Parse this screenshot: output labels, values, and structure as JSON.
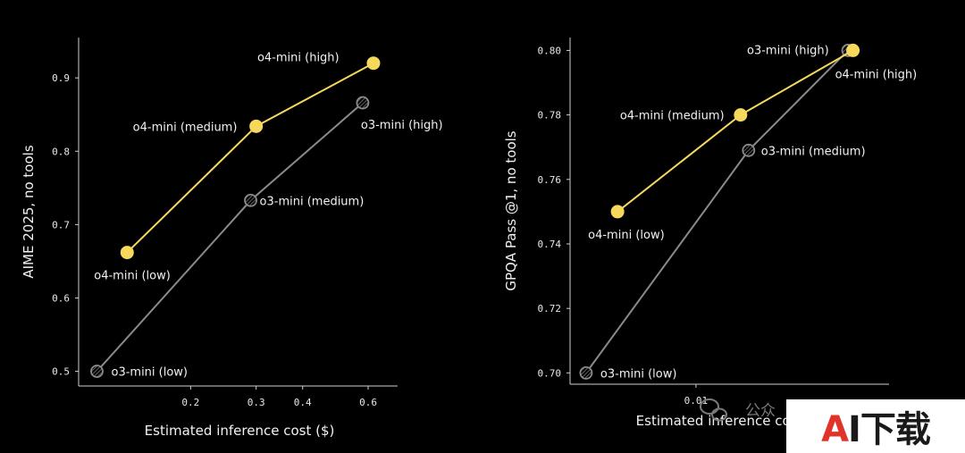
{
  "chart_data": [
    {
      "type": "line",
      "xscale": "log",
      "xlabel": "Estimated inference cost ($)",
      "ylabel": "AIME 2025, no tools",
      "xlim": [
        0.1,
        0.72
      ],
      "ylim": [
        0.48,
        0.955
      ],
      "xticks": [
        "0.2",
        "0.3",
        "0.4",
        "0.6"
      ],
      "yticks": [
        "0.5",
        "0.6",
        "0.7",
        "0.8",
        "0.9"
      ],
      "grid": false,
      "series": [
        {
          "name": "o4-mini",
          "color": "#f6d95c",
          "marker": "filled-circle",
          "x": [
            0.135,
            0.3,
            0.62
          ],
          "y": [
            0.662,
            0.834,
            0.92
          ],
          "point_labels": [
            "o4-mini (low)",
            "o4-mini (medium)",
            "o4-mini (high)"
          ]
        },
        {
          "name": "o3-mini",
          "color": "#8a8a8a",
          "marker": "hatched-circle",
          "x": [
            0.112,
            0.29,
            0.58
          ],
          "y": [
            0.5,
            0.733,
            0.866
          ],
          "point_labels": [
            "o3-mini (low)",
            "o3-mini (medium)",
            "o3-mini (high)"
          ]
        }
      ]
    },
    {
      "type": "line",
      "xscale": "log",
      "xlabel": "Estimated inference cost ($)",
      "ylabel": "GPQA Pass @1, no tools",
      "xlim": [
        0.0035,
        0.05
      ],
      "ylim": [
        0.6965,
        0.804
      ],
      "xticks": [
        "0.01"
      ],
      "yticks": [
        "0.70",
        "0.72",
        "0.74",
        "0.76",
        "0.78",
        "0.80"
      ],
      "grid": false,
      "series": [
        {
          "name": "o4-mini",
          "color": "#f6d95c",
          "marker": "filled-circle",
          "x": [
            0.0052,
            0.0145,
            0.037
          ],
          "y": [
            0.75,
            0.78,
            0.8
          ],
          "point_labels": [
            "o4-mini (low)",
            "o4-mini (medium)",
            "o4-mini (high)"
          ]
        },
        {
          "name": "o3-mini",
          "color": "#8a8a8a",
          "marker": "hatched-circle",
          "x": [
            0.004,
            0.0155,
            0.0355
          ],
          "y": [
            0.7,
            0.769,
            0.8
          ],
          "point_labels": [
            "o3-mini (low)",
            "o3-mini (medium)",
            "o3-mini (high)"
          ]
        }
      ]
    }
  ],
  "watermark": {
    "wechat_text": "公众",
    "badge_text_a": "A",
    "badge_text_rest": "I下载"
  }
}
